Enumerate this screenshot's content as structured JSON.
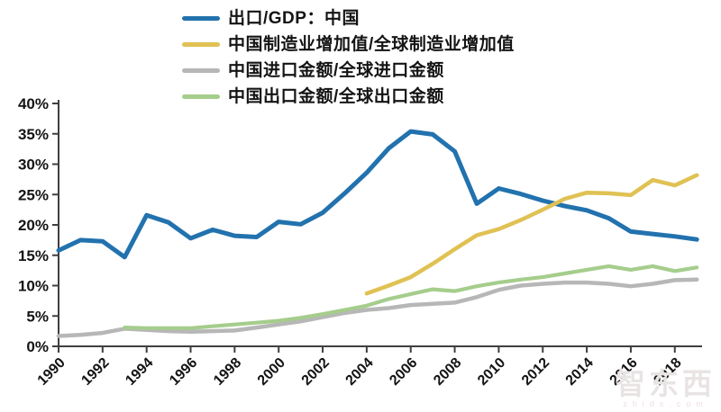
{
  "page": {
    "background": "#ffffff"
  },
  "watermark": {
    "logo_text": "智东西",
    "domain": "zhidx.com"
  },
  "chart_data": {
    "type": "line",
    "title": "",
    "xlabel": "",
    "ylabel": "",
    "grid": false,
    "legend_position": "top-left",
    "x_axis": {
      "min": 1990,
      "max": 2019,
      "tick_years": [
        1990,
        1992,
        1994,
        1996,
        1998,
        2000,
        2002,
        2004,
        2006,
        2008,
        2010,
        2012,
        2014,
        2016,
        2018
      ]
    },
    "y_axis": {
      "min": 0,
      "max": 40,
      "step": 5,
      "tick_labels": [
        "0%",
        "5%",
        "10%",
        "15%",
        "20%",
        "25%",
        "30%",
        "35%",
        "40%"
      ]
    },
    "series": [
      {
        "name": "出口/GDP：中国",
        "color": "#2272ae",
        "start_year": 1990,
        "values": [
          15.8,
          17.5,
          17.3,
          14.7,
          21.6,
          20.4,
          17.8,
          19.2,
          18.2,
          18.0,
          20.5,
          20.1,
          22.0,
          25.2,
          28.6,
          32.6,
          35.4,
          34.9,
          32.1,
          23.5,
          26.0,
          25.1,
          24.0,
          23.1,
          22.4,
          21.1,
          18.9,
          18.5,
          18.1,
          17.6
        ]
      },
      {
        "name": "中国制造业增加值/全球制造业增加值",
        "color": "#e0c153",
        "start_year": 2004,
        "values": [
          8.7,
          10.0,
          11.4,
          13.6,
          16.0,
          18.3,
          19.3,
          20.8,
          22.5,
          24.3,
          25.3,
          25.2,
          24.9,
          27.4,
          26.5,
          28.2
        ]
      },
      {
        "name": "中国进口金额/全球进口金额",
        "color": "#b7b7b7",
        "start_year": 1990,
        "values": [
          1.7,
          1.9,
          2.2,
          2.9,
          2.7,
          2.5,
          2.4,
          2.5,
          2.6,
          3.1,
          3.6,
          4.1,
          4.8,
          5.5,
          6.0,
          6.3,
          6.8,
          7.0,
          7.2,
          8.1,
          9.3,
          10.0,
          10.3,
          10.5,
          10.5,
          10.3,
          9.9,
          10.3,
          10.9,
          11.0
        ]
      },
      {
        "name": "中国出口金额/全球出口金额",
        "color": "#a5cd8c",
        "start_year": 1993,
        "values": [
          3.1,
          3.0,
          3.0,
          3.0,
          3.3,
          3.6,
          3.9,
          4.2,
          4.7,
          5.3,
          6.0,
          6.7,
          7.8,
          8.6,
          9.4,
          9.1,
          9.9,
          10.5,
          11.0,
          11.4,
          12.0,
          12.6,
          13.2,
          12.6,
          13.2,
          12.4,
          13.0
        ]
      }
    ]
  }
}
